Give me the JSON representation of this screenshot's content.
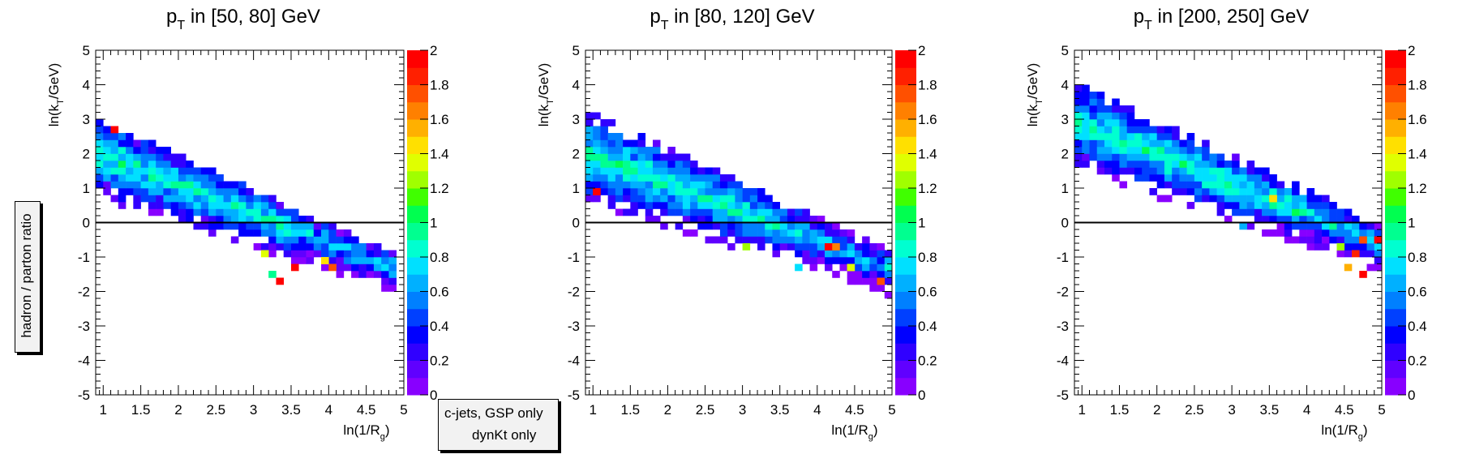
{
  "labels": {
    "zaxis": "hadron / parton ratio",
    "legend_line1": "c-jets, GSP only",
    "legend_line2": "dynKt only"
  },
  "colors": {
    "palette": [
      "#8800ff",
      "#6000ff",
      "#3000ff",
      "#0000ff",
      "#0040ff",
      "#0080ff",
      "#00b0ff",
      "#00e0ff",
      "#00ffd0",
      "#00ff90",
      "#00ff50",
      "#40ff00",
      "#a0ff00",
      "#e0ff00",
      "#ffe000",
      "#ffb000",
      "#ff8000",
      "#ff5000",
      "#ff2000",
      "#ff0000"
    ],
    "zero_line": "#000000"
  },
  "chart_data": [
    {
      "type": "heatmap",
      "title_main": "p",
      "title_sub": "T",
      "title_rest": " in [50, 80] GeV",
      "xlabel_main": "ln(1/R",
      "xlabel_sub": "g",
      "xlabel_end": ")",
      "ylabel_main": "ln(k",
      "ylabel_sub": "T",
      "ylabel_end": "/GeV)",
      "xlim": [
        0.9,
        5.0
      ],
      "ylim": [
        -5,
        5
      ],
      "zlim": [
        0,
        2
      ],
      "xticks": [
        "1",
        "1.5",
        "2",
        "2.5",
        "3",
        "3.5",
        "4",
        "4.5",
        "5"
      ],
      "yticks": [
        "-5",
        "-4",
        "-3",
        "-2",
        "-1",
        "0",
        "1",
        "2",
        "3",
        "4",
        "5"
      ],
      "zticks": [
        "0",
        "0.2",
        "0.4",
        "0.6",
        "0.8",
        "1",
        "1.2",
        "1.4",
        "1.6",
        "1.8",
        "2"
      ],
      "cell_size": [
        0.1,
        0.2
      ],
      "band": {
        "x_start": 0.9,
        "x_end": 4.9,
        "y_top_at_start": 3.0,
        "y_top_at_end": -1.0,
        "y_bottom_at_start": 0.8,
        "y_bottom_at_end": -2.0
      },
      "hot_cells": [
        [
          1.1,
          2.6,
          1.95
        ],
        [
          3.3,
          -1.8,
          1.95
        ],
        [
          3.5,
          -1.4,
          1.9
        ],
        [
          4.0,
          -1.4,
          1.7
        ],
        [
          3.9,
          -1.2,
          1.4
        ],
        [
          3.1,
          -1.0,
          1.3
        ],
        [
          3.2,
          -1.6,
          0.9
        ]
      ]
    },
    {
      "type": "heatmap",
      "title_main": "p",
      "title_sub": "T",
      "title_rest": " in [80, 120] GeV",
      "xlabel_main": "ln(1/R",
      "xlabel_sub": "g",
      "xlabel_end": ")",
      "ylabel_main": "ln(k",
      "ylabel_sub": "T",
      "ylabel_end": "/GeV)",
      "xlim": [
        0.9,
        5.0
      ],
      "ylim": [
        -5,
        5
      ],
      "zlim": [
        0,
        2
      ],
      "xticks": [
        "1",
        "1.5",
        "2",
        "2.5",
        "3",
        "3.5",
        "4",
        "4.5",
        "5"
      ],
      "yticks": [
        "-5",
        "-4",
        "-3",
        "-2",
        "-1",
        "0",
        "1",
        "2",
        "3",
        "4",
        "5"
      ],
      "zticks": [
        "0",
        "0.2",
        "0.4",
        "0.6",
        "0.8",
        "1",
        "1.2",
        "1.4",
        "1.6",
        "1.8",
        "2"
      ],
      "cell_size": [
        0.1,
        0.2
      ],
      "band": {
        "x_start": 0.9,
        "x_end": 5.0,
        "y_top_at_start": 3.2,
        "y_top_at_end": -1.0,
        "y_bottom_at_start": 0.6,
        "y_bottom_at_end": -2.0
      },
      "hot_cells": [
        [
          1.0,
          0.8,
          1.95
        ],
        [
          4.1,
          -0.8,
          1.95
        ],
        [
          4.2,
          -0.8,
          1.6
        ],
        [
          4.8,
          -1.8,
          1.7
        ],
        [
          4.4,
          -1.4,
          1.3
        ],
        [
          3.0,
          -0.8,
          1.2
        ],
        [
          4.9,
          -2.2,
          0.05
        ],
        [
          3.7,
          -1.4,
          0.7
        ]
      ]
    },
    {
      "type": "heatmap",
      "title_main": "p",
      "title_sub": "T",
      "title_rest": " in [200, 250] GeV",
      "xlabel_main": "ln(1/R",
      "xlabel_sub": "g",
      "xlabel_end": ")",
      "ylabel_main": "ln(k",
      "ylabel_sub": "T",
      "ylabel_end": "/GeV)",
      "xlim": [
        0.9,
        5.0
      ],
      "ylim": [
        -5,
        5
      ],
      "zlim": [
        0,
        2
      ],
      "xticks": [
        "1",
        "1.5",
        "2",
        "2.5",
        "3",
        "3.5",
        "4",
        "4.5",
        "5"
      ],
      "yticks": [
        "-5",
        "-4",
        "-3",
        "-2",
        "-1",
        "0",
        "1",
        "2",
        "3",
        "4",
        "5"
      ],
      "zticks": [
        "0",
        "0.2",
        "0.4",
        "0.6",
        "0.8",
        "1",
        "1.2",
        "1.4",
        "1.6",
        "1.8",
        "2"
      ],
      "cell_size": [
        0.1,
        0.2
      ],
      "band": {
        "x_start": 0.9,
        "x_end": 5.0,
        "y_top_at_start": 4.0,
        "y_top_at_end": -0.2,
        "y_bottom_at_start": 1.6,
        "y_bottom_at_end": -1.4
      },
      "hot_cells": [
        [
          4.7,
          -1.6,
          1.95
        ],
        [
          4.9,
          -0.6,
          1.95
        ],
        [
          4.6,
          -1.0,
          1.8
        ],
        [
          4.7,
          -0.6,
          1.7
        ],
        [
          4.5,
          -1.4,
          1.5
        ],
        [
          3.5,
          0.6,
          1.4
        ],
        [
          4.4,
          -0.8,
          1.2
        ],
        [
          3.1,
          -0.2,
          0.6
        ]
      ]
    }
  ]
}
